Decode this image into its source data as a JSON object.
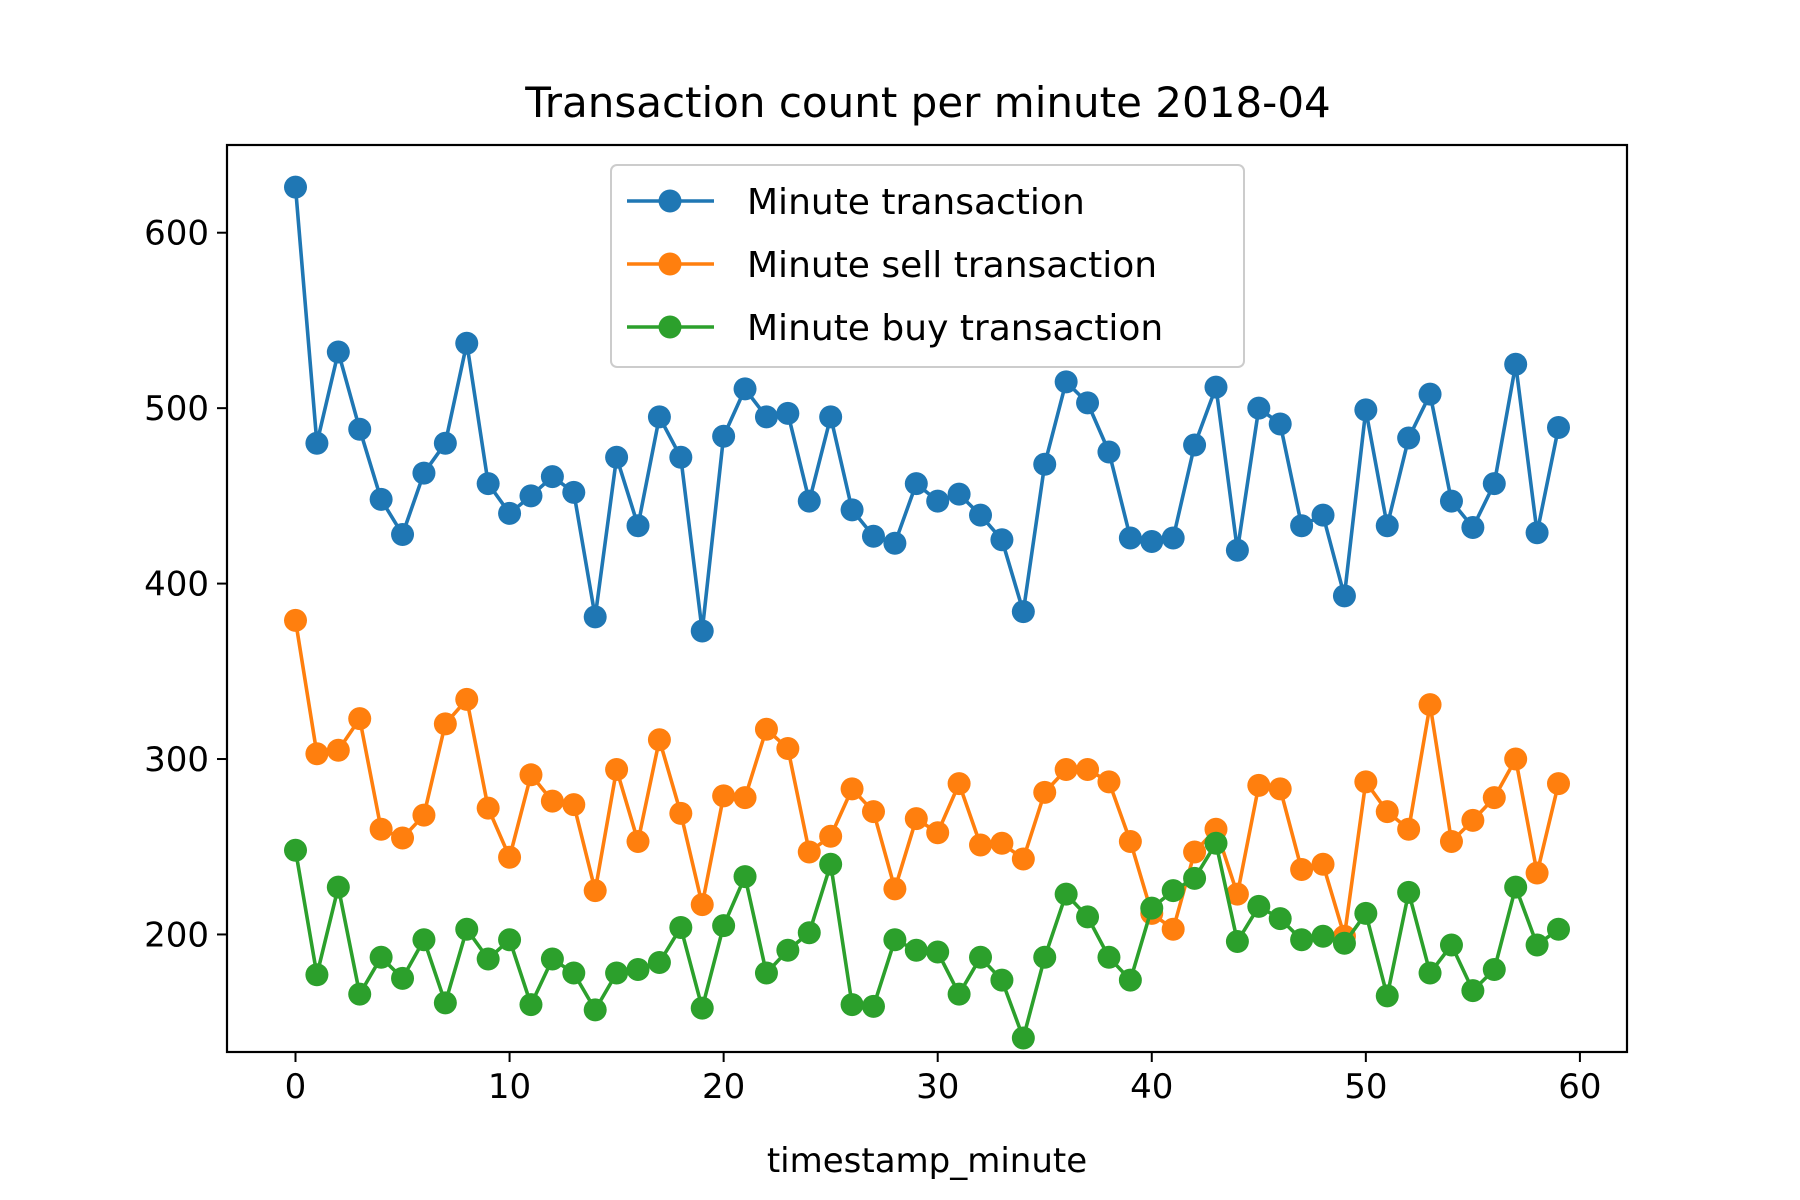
{
  "chart_data": {
    "type": "line",
    "title": "Transaction count per minute 2018-04",
    "xlabel": "timestamp_minute",
    "ylabel": "",
    "xlim": [
      -3.2,
      62.2
    ],
    "ylim": [
      133,
      650
    ],
    "xticks": [
      0,
      10,
      20,
      30,
      40,
      50,
      60
    ],
    "yticks": [
      200,
      300,
      400,
      500,
      600
    ],
    "grid": false,
    "legend_position": "top-center",
    "x": [
      0,
      1,
      2,
      3,
      4,
      5,
      6,
      7,
      8,
      9,
      10,
      11,
      12,
      13,
      14,
      15,
      16,
      17,
      18,
      19,
      20,
      21,
      22,
      23,
      24,
      25,
      26,
      27,
      28,
      29,
      30,
      31,
      32,
      33,
      34,
      35,
      36,
      37,
      38,
      39,
      40,
      41,
      42,
      43,
      44,
      45,
      46,
      47,
      48,
      49,
      50,
      51,
      52,
      53,
      54,
      55,
      56,
      57,
      58,
      59
    ],
    "series": [
      {
        "name": "Minute transaction",
        "color": "#1f77b4",
        "values": [
          626,
          480,
          532,
          488,
          448,
          428,
          463,
          480,
          537,
          457,
          440,
          450,
          461,
          452,
          381,
          472,
          433,
          495,
          472,
          373,
          484,
          511,
          495,
          497,
          447,
          495,
          442,
          427,
          423,
          457,
          447,
          451,
          439,
          425,
          384,
          468,
          515,
          503,
          475,
          426,
          424,
          426,
          479,
          512,
          419,
          500,
          491,
          433,
          439,
          393,
          499,
          433,
          483,
          508,
          447,
          432,
          457,
          525,
          429,
          489
        ]
      },
      {
        "name": "Minute sell transaction",
        "color": "#ff7f0e",
        "values": [
          379,
          303,
          305,
          323,
          260,
          255,
          268,
          320,
          334,
          272,
          244,
          291,
          276,
          274,
          225,
          294,
          253,
          311,
          269,
          217,
          279,
          278,
          317,
          306,
          247,
          256,
          283,
          270,
          226,
          266,
          258,
          286,
          251,
          252,
          243,
          281,
          294,
          294,
          287,
          253,
          212,
          203,
          247,
          260,
          223,
          285,
          283,
          237,
          240,
          199,
          287,
          270,
          260,
          331,
          253,
          265,
          278,
          300,
          235,
          286
        ]
      },
      {
        "name": "Minute buy transaction",
        "color": "#2ca02c",
        "values": [
          248,
          177,
          227,
          166,
          187,
          175,
          197,
          161,
          203,
          186,
          197,
          160,
          186,
          178,
          157,
          178,
          180,
          184,
          204,
          158,
          205,
          233,
          178,
          191,
          201,
          240,
          160,
          159,
          197,
          191,
          190,
          166,
          187,
          174,
          141,
          187,
          223,
          210,
          187,
          174,
          215,
          225,
          232,
          252,
          196,
          216,
          209,
          197,
          199,
          195,
          212,
          165,
          224,
          178,
          194,
          168,
          180,
          227,
          194,
          203
        ]
      }
    ]
  }
}
